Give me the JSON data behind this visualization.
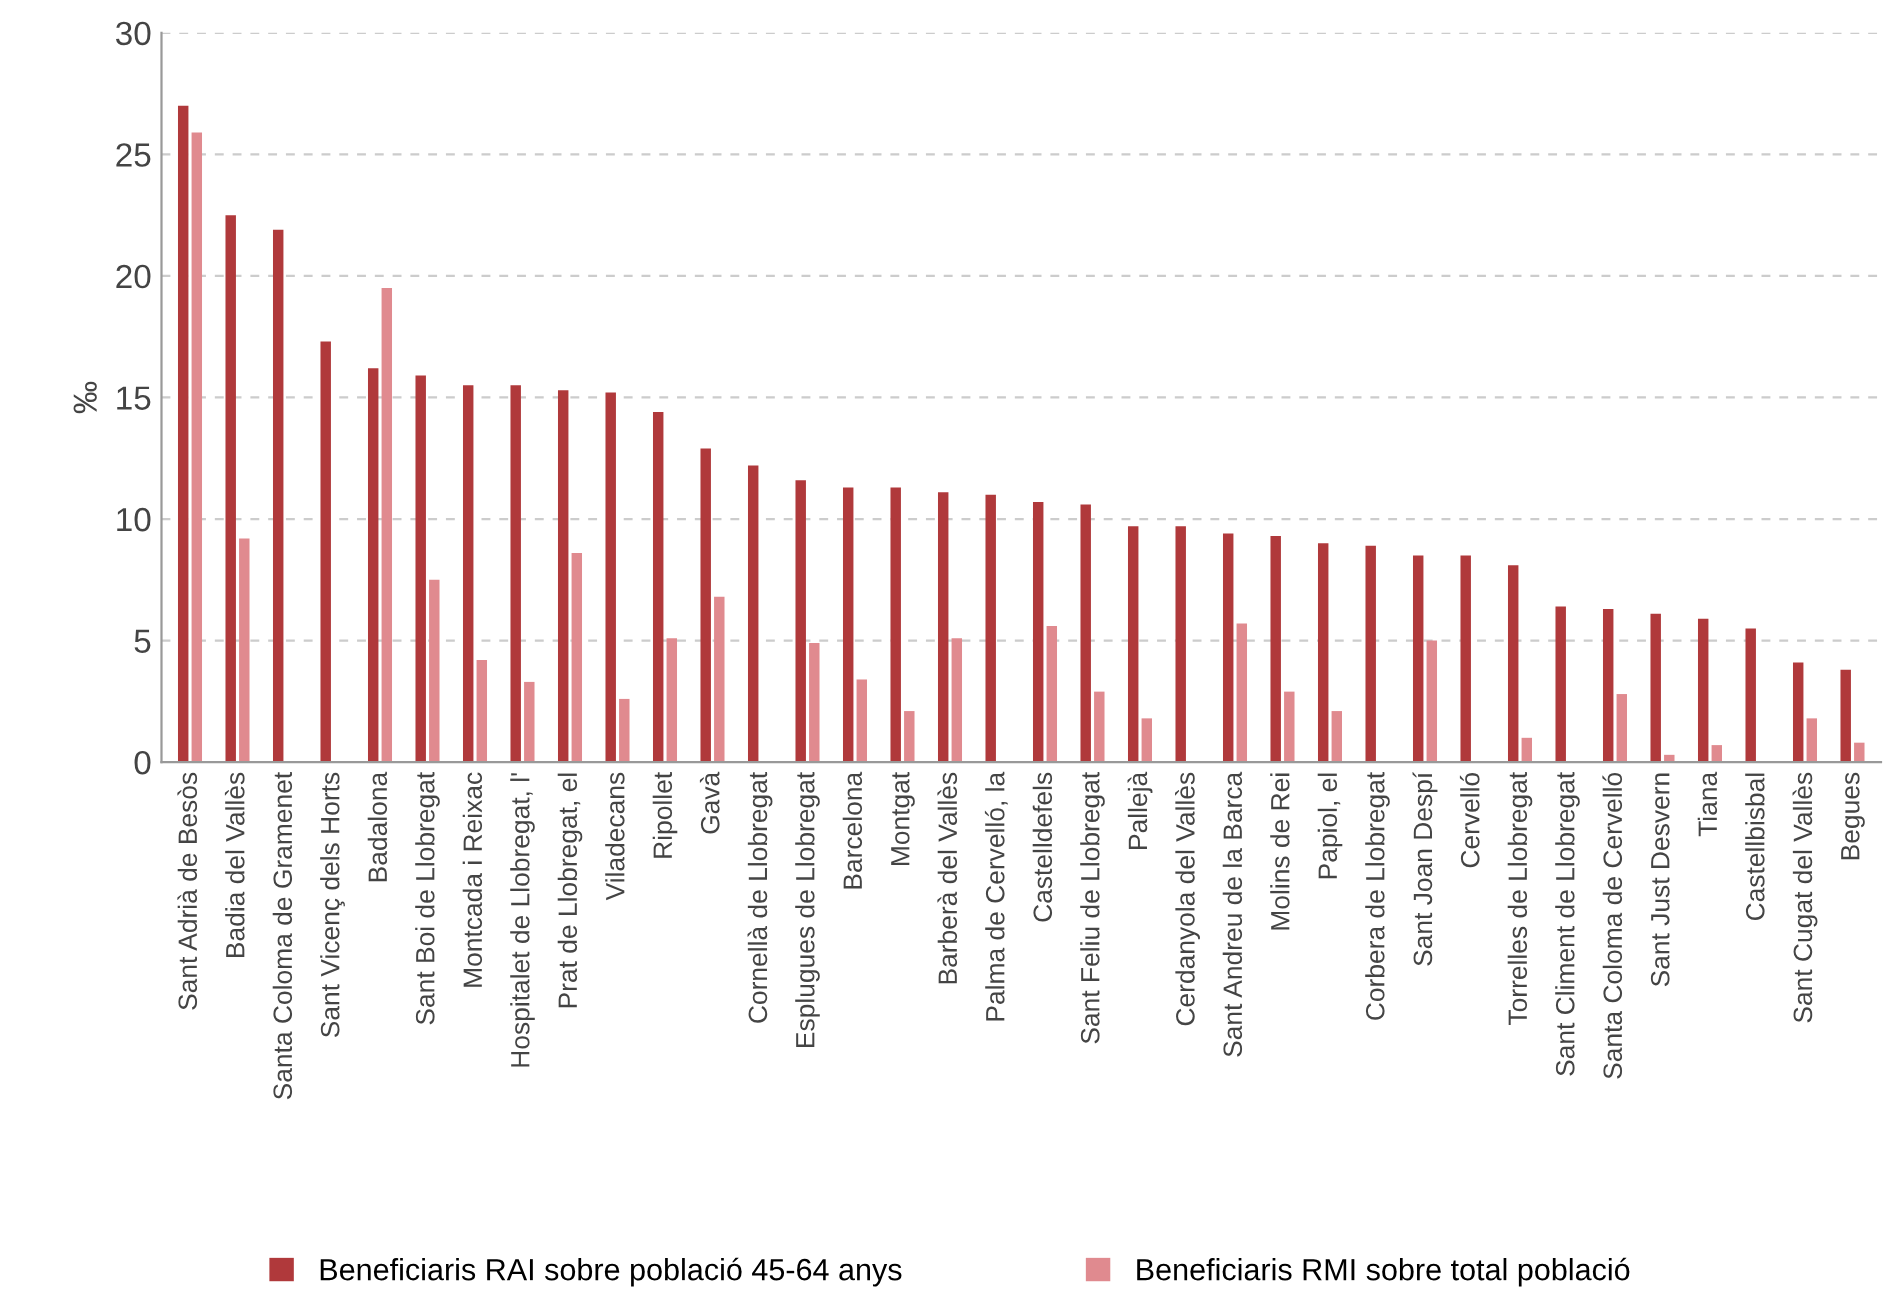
{
  "chart_data": {
    "type": "bar",
    "ylabel": "‰",
    "categories": [
      "Sant Adrià de Besòs",
      "Badia del Vallès",
      "Santa Coloma de Gramenet",
      "Sant Vicenç dels Horts",
      "Badalona",
      "Sant Boi de Llobregat",
      "Montcada i Reixac",
      "Hospitalet de Llobregat, l'",
      "Prat de Llobregat, el",
      "Viladecans",
      "Ripollet",
      "Gavà",
      "Cornellà de Llobregat",
      "Esplugues de Llobregat",
      "Barcelona",
      "Montgat",
      "Barberà del Vallès",
      "Palma de Cervelló, la",
      "Castelldefels",
      "Sant Feliu de Llobregat",
      "Pallejà",
      "Cerdanyola del Vallès",
      "Sant Andreu de la Barca",
      "Molins de Rei",
      "Papiol, el",
      "Corbera de Llobregat",
      "Sant Joan Despí",
      "Cervelló",
      "Torrelles de Llobregat",
      "Sant Climent de Llobregat",
      "Santa Coloma de Cervelló",
      "Sant Just Desvern",
      "Tiana",
      "Castellbisbal",
      "Sant Cugat del Vallès",
      "Begues"
    ],
    "series": [
      {
        "name": "Beneficiaris RAI sobre població 45-64 anys",
        "color": "#b0393b",
        "values": [
          27.0,
          22.5,
          21.9,
          17.3,
          16.2,
          15.9,
          15.5,
          15.5,
          15.3,
          15.2,
          14.4,
          12.9,
          12.2,
          11.6,
          11.3,
          11.3,
          11.1,
          11.0,
          10.7,
          10.6,
          9.7,
          9.7,
          9.4,
          9.3,
          9.0,
          8.9,
          8.5,
          8.5,
          8.1,
          6.4,
          6.3,
          6.1,
          5.9,
          5.5,
          4.1,
          3.8
        ]
      },
      {
        "name": "Beneficiaris RMI sobre total població",
        "color": "#e08a8f",
        "values": [
          25.9,
          9.2,
          null,
          null,
          19.5,
          7.5,
          4.2,
          3.3,
          8.6,
          2.6,
          5.1,
          6.8,
          null,
          4.9,
          3.4,
          2.1,
          5.1,
          null,
          5.6,
          2.9,
          1.8,
          null,
          5.7,
          2.9,
          2.1,
          null,
          5.0,
          null,
          1.0,
          null,
          2.8,
          0.3,
          0.7,
          null,
          1.8,
          0.8
        ]
      }
    ],
    "ylim": [
      0,
      30
    ],
    "yticks": [
      0,
      5,
      10,
      15,
      20,
      25,
      30
    ],
    "grid": "y",
    "legend": "bottom"
  }
}
